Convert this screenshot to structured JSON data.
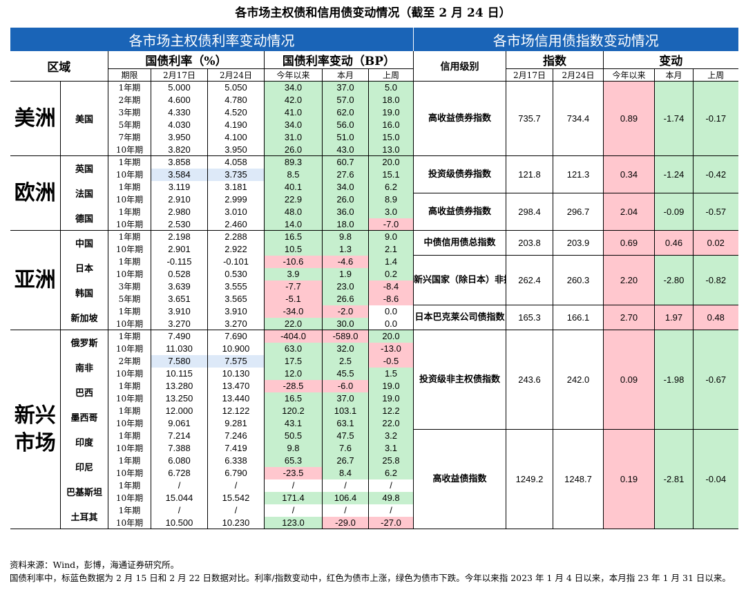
{
  "title": "各市场主权债和信用债变动情况（截至 2 月 24 日）",
  "sovereign": {
    "section_title": "各市场主权债利率变动情况",
    "region_header": "区域",
    "yield_header": "国债利率（%）",
    "change_header": "国债利率变动（BP）",
    "col_term": "期限",
    "col_d1": "2月17日",
    "col_d2": "2月24日",
    "col_ytd": "今年以来",
    "col_mtd": "本月",
    "col_wtd": "上周",
    "rows": [
      {
        "term": "1年期",
        "d1": "5.000",
        "d2": "5.050",
        "ytd": "34.0",
        "mtd": "37.0",
        "wtd": "5.0"
      },
      {
        "term": "2年期",
        "d1": "4.600",
        "d2": "4.780",
        "ytd": "42.0",
        "mtd": "57.0",
        "wtd": "18.0"
      },
      {
        "term": "3年期",
        "d1": "4.330",
        "d2": "4.520",
        "ytd": "41.0",
        "mtd": "62.0",
        "wtd": "19.0"
      },
      {
        "term": "5年期",
        "d1": "4.030",
        "d2": "4.190",
        "ytd": "34.0",
        "mtd": "56.0",
        "wtd": "16.0"
      },
      {
        "term": "7年期",
        "d1": "3.950",
        "d2": "4.100",
        "ytd": "31.0",
        "mtd": "51.0",
        "wtd": "15.0"
      },
      {
        "term": "10年期",
        "d1": "3.820",
        "d2": "3.950",
        "ytd": "26.0",
        "mtd": "43.0",
        "wtd": "13.0"
      },
      {
        "term": "1年期",
        "d1": "3.858",
        "d2": "4.058",
        "ytd": "89.3",
        "mtd": "60.7",
        "wtd": "20.0"
      },
      {
        "term": "10年期",
        "d1": "3.584",
        "d2": "3.735",
        "ytd": "8.5",
        "mtd": "27.6",
        "wtd": "15.1"
      },
      {
        "term": "1年期",
        "d1": "3.119",
        "d2": "3.181",
        "ytd": "40.1",
        "mtd": "34.0",
        "wtd": "6.2"
      },
      {
        "term": "10年期",
        "d1": "2.910",
        "d2": "2.999",
        "ytd": "22.9",
        "mtd": "26.0",
        "wtd": "8.9"
      },
      {
        "term": "1年期",
        "d1": "2.980",
        "d2": "3.010",
        "ytd": "48.0",
        "mtd": "36.0",
        "wtd": "3.0"
      },
      {
        "term": "10年期",
        "d1": "2.530",
        "d2": "2.460",
        "ytd": "14.0",
        "mtd": "18.0",
        "wtd": "-7.0"
      },
      {
        "term": "1年期",
        "d1": "2.198",
        "d2": "2.288",
        "ytd": "16.5",
        "mtd": "9.8",
        "wtd": "9.0"
      },
      {
        "term": "10年期",
        "d1": "2.901",
        "d2": "2.922",
        "ytd": "10.5",
        "mtd": "1.3",
        "wtd": "2.1"
      },
      {
        "term": "1年期",
        "d1": "-0.115",
        "d2": "-0.101",
        "ytd": "-10.6",
        "mtd": "-4.6",
        "wtd": "1.4"
      },
      {
        "term": "10年期",
        "d1": "0.528",
        "d2": "0.530",
        "ytd": "3.9",
        "mtd": "1.9",
        "wtd": "0.2"
      },
      {
        "term": "3年期",
        "d1": "3.639",
        "d2": "3.555",
        "ytd": "-7.7",
        "mtd": "23.0",
        "wtd": "-8.4"
      },
      {
        "term": "5年期",
        "d1": "3.651",
        "d2": "3.565",
        "ytd": "-5.1",
        "mtd": "26.6",
        "wtd": "-8.6"
      },
      {
        "term": "1年期",
        "d1": "3.910",
        "d2": "3.910",
        "ytd": "-34.0",
        "mtd": "-2.0",
        "wtd": "0.0"
      },
      {
        "term": "10年期",
        "d1": "3.270",
        "d2": "3.270",
        "ytd": "22.0",
        "mtd": "30.0",
        "wtd": "0.0"
      },
      {
        "term": "1年期",
        "d1": "7.490",
        "d2": "7.690",
        "ytd": "-404.0",
        "mtd": "-589.0",
        "wtd": "20.0"
      },
      {
        "term": "10年期",
        "d1": "11.030",
        "d2": "10.900",
        "ytd": "63.0",
        "mtd": "32.0",
        "wtd": "-13.0"
      },
      {
        "term": "2年期",
        "d1": "7.580",
        "d2": "7.575",
        "ytd": "17.5",
        "mtd": "2.5",
        "wtd": "-0.5"
      },
      {
        "term": "10年期",
        "d1": "10.115",
        "d2": "10.130",
        "ytd": "12.0",
        "mtd": "45.5",
        "wtd": "1.5"
      },
      {
        "term": "1年期",
        "d1": "13.280",
        "d2": "13.470",
        "ytd": "-28.5",
        "mtd": "-6.0",
        "wtd": "19.0"
      },
      {
        "term": "10年期",
        "d1": "13.250",
        "d2": "13.440",
        "ytd": "16.5",
        "mtd": "37.0",
        "wtd": "19.0"
      },
      {
        "term": "1年期",
        "d1": "12.000",
        "d2": "12.122",
        "ytd": "120.2",
        "mtd": "103.1",
        "wtd": "12.2"
      },
      {
        "term": "10年期",
        "d1": "9.061",
        "d2": "9.281",
        "ytd": "43.1",
        "mtd": "63.1",
        "wtd": "22.0"
      },
      {
        "term": "1年期",
        "d1": "7.214",
        "d2": "7.246",
        "ytd": "50.5",
        "mtd": "47.5",
        "wtd": "3.2"
      },
      {
        "term": "10年期",
        "d1": "7.388",
        "d2": "7.419",
        "ytd": "9.8",
        "mtd": "7.6",
        "wtd": "3.1"
      },
      {
        "term": "1年期",
        "d1": "6.080",
        "d2": "6.338",
        "ytd": "65.3",
        "mtd": "26.7",
        "wtd": "25.8"
      },
      {
        "term": "10年期",
        "d1": "6.728",
        "d2": "6.790",
        "ytd": "-23.5",
        "mtd": "8.4",
        "wtd": "6.2"
      },
      {
        "term": "1年期",
        "d1": "/",
        "d2": "/",
        "ytd": "/",
        "mtd": "/",
        "wtd": "/"
      },
      {
        "term": "10年期",
        "d1": "15.044",
        "d2": "15.542",
        "ytd": "171.4",
        "mtd": "106.4",
        "wtd": "49.8"
      },
      {
        "term": "1年期",
        "d1": "/",
        "d2": "/",
        "ytd": "/",
        "mtd": "/",
        "wtd": "/"
      },
      {
        "term": "10年期",
        "d1": "10.500",
        "d2": "10.230",
        "ytd": "123.0",
        "mtd": "-29.0",
        "wtd": "-27.0"
      }
    ],
    "regions": [
      "美洲",
      "欧洲",
      "亚洲",
      "新兴市场"
    ],
    "countries": [
      "美国",
      "英国",
      "法国",
      "德国",
      "中国",
      "日本",
      "韩国",
      "新加坡",
      "俄罗斯",
      "南非",
      "巴西",
      "墨西哥",
      "印度",
      "印尼",
      "巴基斯坦",
      "土耳其"
    ]
  },
  "credit": {
    "section_title": "各市场信用债指数变动情况",
    "rating_header": "信用级别",
    "index_header": "指数",
    "change_header": "变动",
    "col_d1": "2月17日",
    "col_d2": "2月24日",
    "col_ytd": "今年以来",
    "col_mtd": "本月",
    "col_wtd": "上周",
    "rows": [
      {
        "name": "高收益债券指数",
        "d1": "735.7",
        "d2": "734.4",
        "ytd": "0.89",
        "mtd": "-1.74",
        "wtd": "-0.17"
      },
      {
        "name": "投资级债券指数",
        "d1": "121.8",
        "d2": "121.3",
        "ytd": "0.34",
        "mtd": "-1.24",
        "wtd": "-0.42"
      },
      {
        "name": "高收益债券指数",
        "d1": "298.4",
        "d2": "296.7",
        "ytd": "2.04",
        "mtd": "-0.09",
        "wtd": "-0.57"
      },
      {
        "name": "中债信用债总指数",
        "d1": "203.8",
        "d2": "203.9",
        "ytd": "0.69",
        "mtd": "0.46",
        "wtd": "0.02"
      },
      {
        "name": "新兴国家（除日本）非投资级指数",
        "d1": "262.4",
        "d2": "260.3",
        "ytd": "2.20",
        "mtd": "-2.80",
        "wtd": "-0.82"
      },
      {
        "name": "日本巴克莱公司债指数",
        "d1": "165.3",
        "d2": "166.1",
        "ytd": "2.70",
        "mtd": "1.97",
        "wtd": "0.48"
      },
      {
        "name": "投资级非主权债指数",
        "d1": "243.6",
        "d2": "242.0",
        "ytd": "0.09",
        "mtd": "-1.98",
        "wtd": "-0.67"
      },
      {
        "name": "高收益债指数",
        "d1": "1249.2",
        "d2": "1248.7",
        "ytd": "0.19",
        "mtd": "-2.81",
        "wtd": "-0.04"
      }
    ]
  },
  "notes": {
    "source": "资料来源：Wind，彭博，海通证券研究所。",
    "note": "国债利率中，标蓝色数据为 2 月 15 日和 2 月 22 日数据对比。利率/指数变动中，红色为债市上涨，绿色为债市下跌。今年以来指 2023 年 1 月 4 日以来，本月指 23 年 1 月 31 日以来。"
  },
  "colors": {
    "header_blue": "#1a64b7",
    "up_green": "#c6efce",
    "down_red": "#ffc7ce",
    "highlight_blue": "#dde9f8"
  }
}
